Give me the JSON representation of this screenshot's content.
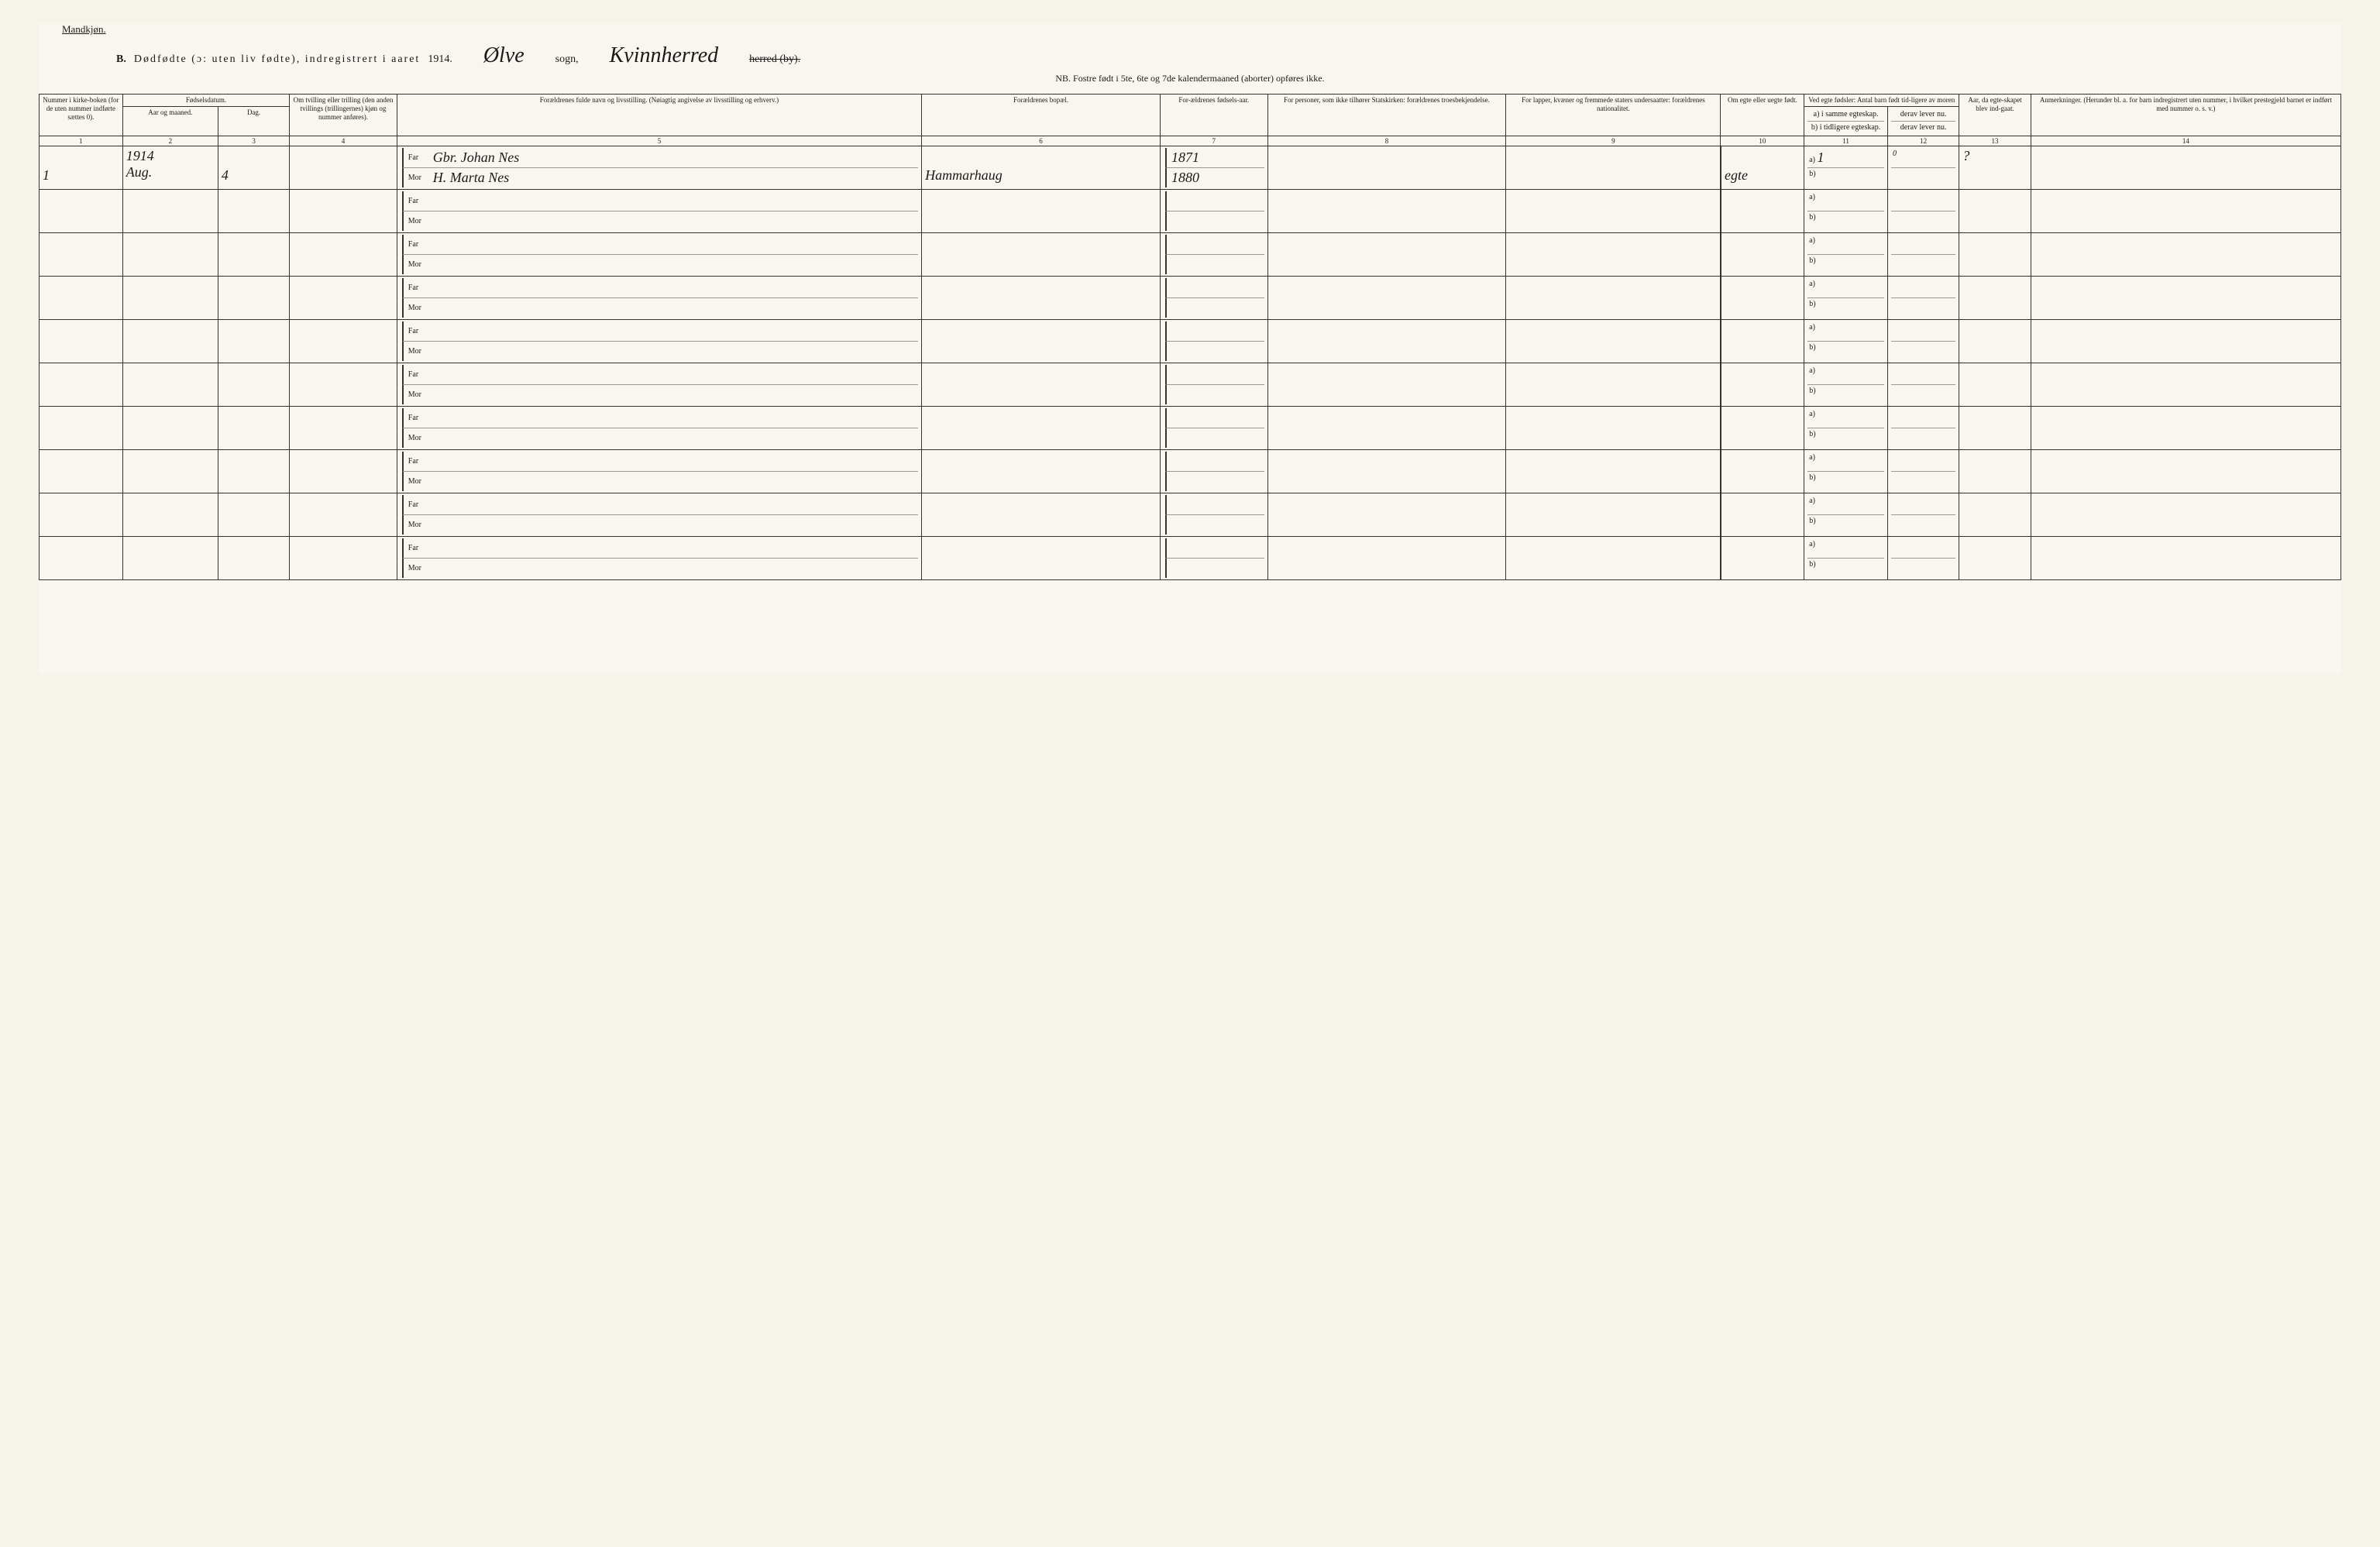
{
  "header": {
    "gender_label": "Mandkjøn.",
    "section": "B.",
    "title": "Dødfødte (ɔ: uten liv fødte), indregistrert i aaret",
    "year": "1914.",
    "sogn_cursive": "Ølve",
    "sogn_label": "sogn,",
    "herred_cursive": "Kvinnherred",
    "herred_label": "herred (by).",
    "nb": "NB. Fostre født i 5te, 6te og 7de kalendermaaned (aborter) opføres ikke."
  },
  "columns": {
    "h1": "Nummer i kirke-boken (for de uten nummer indførte sættes 0).",
    "h2_top": "Fødselsdatum.",
    "h2a": "Aar og maaned.",
    "h2b": "Dag.",
    "h3": "Om tvilling eller trilling (den anden tvillings (trillingernes) kjøn og nummer anføres).",
    "h4": "Forældrenes fulde navn og livsstilling. (Nøiagtig angivelse av livsstilling og erhverv.)",
    "h5": "Forældrenes bopæl.",
    "h6": "For-ældrenes fødsels-aar.",
    "h7": "For personer, som ikke tilhører Statskirken: forældrenes troesbekjendelse.",
    "h8": "For lapper, kvæner og fremmede staters undersaatter: forældrenes nationalitet.",
    "h9": "Om egte eller uegte født.",
    "h10_top": "Ved egte fødsler: Antal barn født tid-ligere av moren",
    "h10a": "a) i samme egteskap.",
    "h10b": "b) i tidligere egteskap.",
    "h11a": "derav lever nu.",
    "h11b": "derav lever nu.",
    "h12": "Aar, da egte-skapet blev ind-gaat.",
    "h13": "Anmerkninger. (Herunder bl. a. for barn indregistrert uten nummer, i hvilket prestegjeld barnet er indført med nummer o. s. v.)"
  },
  "colnums": [
    "1",
    "2",
    "3",
    "4",
    "5",
    "6",
    "7",
    "8",
    "9",
    "10",
    "11",
    "12",
    "13",
    "14"
  ],
  "labels": {
    "far": "Far",
    "mor": "Mor",
    "a": "a)",
    "b": "b)"
  },
  "row1": {
    "num": "1",
    "year_month": "1914",
    "month": "Aug.",
    "day": "4",
    "far_name": "Gbr. Johan Nes",
    "mor_name": "H. Marta Nes",
    "bopael": "Hammarhaug",
    "far_aar": "1871",
    "mor_aar": "1880",
    "egte": "egte",
    "c11a": "1",
    "c12a": "0",
    "c13": "?"
  }
}
